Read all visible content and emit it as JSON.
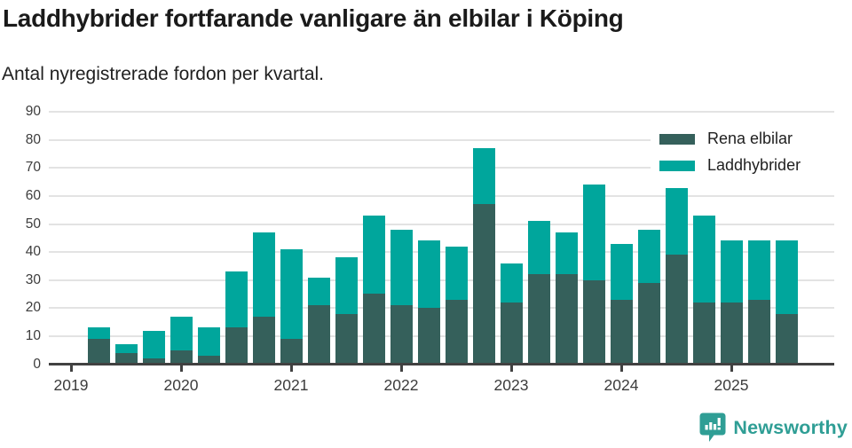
{
  "header": {
    "title": "Laddhybrider fortfarande vanligare än elbilar i Köping",
    "subtitle": "Antal nyregistrerade fordon per kvartal."
  },
  "legend": [
    {
      "label": "Rena elbilar",
      "color": "#35605b"
    },
    {
      "label": "Laddhybrider",
      "color": "#00a69c"
    }
  ],
  "chart_data": {
    "type": "bar",
    "stacked": true,
    "title": "Laddhybrider fortfarande vanligare än elbilar i Köping",
    "subtitle": "Antal nyregistrerade fordon per kvartal.",
    "xlabel": "",
    "ylabel": "",
    "ylim": [
      0,
      90
    ],
    "grid": true,
    "legend_position": "top-right",
    "y_ticks": [
      0,
      10,
      20,
      30,
      40,
      50,
      60,
      70,
      80,
      90
    ],
    "x_tick_labels": [
      "2019",
      "2020",
      "2021",
      "2022",
      "2023",
      "2024",
      "2025"
    ],
    "categories": [
      "2019 Q2",
      "2019 Q3",
      "2019 Q4",
      "2020 Q1",
      "2020 Q2",
      "2020 Q3",
      "2020 Q4",
      "2021 Q1",
      "2021 Q2",
      "2021 Q3",
      "2021 Q4",
      "2022 Q1",
      "2022 Q2",
      "2022 Q3",
      "2022 Q4",
      "2023 Q1",
      "2023 Q2",
      "2023 Q3",
      "2023 Q4",
      "2024 Q1",
      "2024 Q2",
      "2024 Q3",
      "2024 Q4",
      "2025 Q1",
      "2025 Q2",
      "2025 Q3"
    ],
    "series": [
      {
        "name": "Rena elbilar",
        "color": "#35605b",
        "values": [
          9,
          4,
          2,
          5,
          3,
          13,
          17,
          9,
          21,
          18,
          25,
          21,
          20,
          23,
          57,
          22,
          32,
          32,
          30,
          23,
          29,
          39,
          22,
          22,
          23,
          18
        ]
      },
      {
        "name": "Laddhybrider",
        "color": "#00a69c",
        "values": [
          4,
          3,
          10,
          12,
          10,
          20,
          30,
          32,
          10,
          20,
          28,
          27,
          24,
          19,
          20,
          14,
          19,
          15,
          34,
          20,
          19,
          24,
          31,
          22,
          21,
          26
        ]
      }
    ],
    "stack_totals": [
      13,
      7,
      12,
      17,
      13,
      33,
      47,
      41,
      31,
      38,
      53,
      48,
      44,
      42,
      77,
      36,
      51,
      47,
      64,
      43,
      48,
      63,
      53,
      44,
      44,
      44
    ]
  },
  "colors": {
    "grid": "#e3e3e3",
    "axis": "#414141",
    "text": "#3c3c3c"
  },
  "footer": {
    "brand": "Newsworthy",
    "brand_color": "#2f9e95"
  }
}
